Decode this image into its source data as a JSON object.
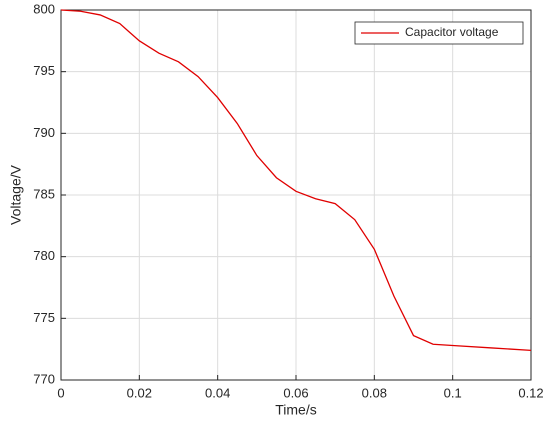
{
  "chart_data": {
    "type": "line",
    "x_label": "Time/s",
    "y_label": "Voltage/V",
    "x": [
      0,
      0.005,
      0.01,
      0.015,
      0.02,
      0.025,
      0.03,
      0.035,
      0.04,
      0.045,
      0.05,
      0.055,
      0.06,
      0.065,
      0.07,
      0.075,
      0.08,
      0.085,
      0.09,
      0.095,
      0.1,
      0.11,
      0.12
    ],
    "series": [
      {
        "name": "Capacitor voltage",
        "color": "#e00000",
        "values": [
          800,
          799.9,
          799.6,
          798.9,
          797.5,
          796.5,
          795.8,
          794.6,
          792.9,
          790.8,
          788.2,
          786.4,
          785.3,
          784.7,
          784.3,
          783.0,
          780.6,
          776.8,
          773.6,
          772.9,
          772.8,
          772.6,
          772.4
        ]
      }
    ],
    "xlim": [
      0,
      0.12
    ],
    "ylim": [
      770,
      800
    ],
    "xticks": [
      0,
      0.02,
      0.04,
      0.06,
      0.08,
      0.1,
      0.12
    ],
    "yticks": [
      770,
      775,
      780,
      785,
      790,
      795,
      800
    ],
    "grid": true,
    "legend": "top-right"
  }
}
